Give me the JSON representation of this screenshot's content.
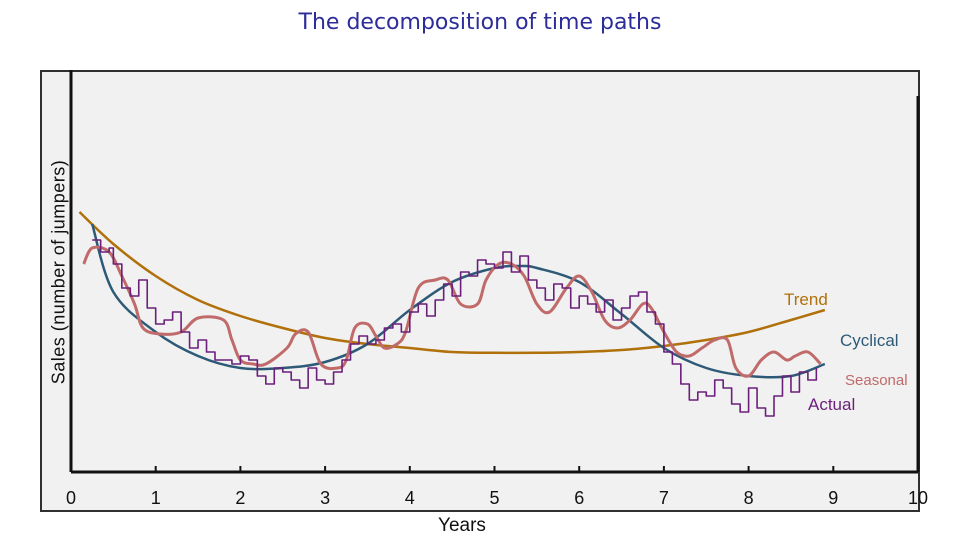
{
  "title": "The decomposition of time paths",
  "chart_data": {
    "type": "line",
    "title": "The decomposition of time paths",
    "xlabel": "Years",
    "ylabel": "Sales (number of jumpers)",
    "xlim": [
      0,
      10
    ],
    "xticks": [
      0,
      1,
      2,
      3,
      4,
      5,
      6,
      7,
      8,
      9,
      10
    ],
    "ylim": [
      0,
      100
    ],
    "grid": false,
    "legend": "inline labels at right end of each series",
    "colors": {
      "trend": "#b0700a",
      "cyclical": "#2e5a78",
      "seasonal": "#c06a6a",
      "actual": "#6b1f7a",
      "axis": "#111111"
    },
    "series": [
      {
        "name": "Trend",
        "key": "trend",
        "x": [
          0.1,
          0.5,
          1,
          1.5,
          2,
          2.5,
          3,
          3.5,
          4,
          4.5,
          5,
          5.5,
          6,
          6.5,
          7,
          7.5,
          8,
          8.5,
          8.9
        ],
        "y": [
          65,
          57,
          49,
          43,
          39,
          36,
          33.5,
          32,
          31,
          30,
          29.8,
          29.8,
          30,
          30.5,
          31.5,
          33,
          35,
          38,
          40.5
        ]
      },
      {
        "name": "Cyclical",
        "key": "cyclical",
        "x": [
          0.25,
          0.5,
          1,
          1.5,
          2,
          2.5,
          3,
          3.5,
          4,
          4.5,
          5,
          5.3,
          5.5,
          6,
          6.5,
          7,
          7.5,
          8,
          8.5,
          8.9
        ],
        "y": [
          62,
          45,
          35,
          29,
          26,
          26,
          27.5,
          32,
          40.5,
          47.5,
          51,
          51.5,
          51,
          47.5,
          39.5,
          31,
          26,
          24,
          24,
          27
        ]
      },
      {
        "name": "Seasonal",
        "key": "seasonal",
        "x": [
          0.15,
          0.25,
          0.45,
          0.6,
          0.75,
          0.85,
          1.05,
          1.3,
          1.5,
          1.8,
          1.9,
          2.0,
          2.15,
          2.3,
          2.55,
          2.65,
          2.8,
          2.95,
          3.15,
          3.25,
          3.35,
          3.5,
          3.6,
          3.7,
          3.85,
          3.95,
          4.1,
          4.3,
          4.45,
          4.6,
          4.8,
          4.9,
          5.05,
          5.2,
          5.35,
          5.5,
          5.65,
          5.85,
          6.0,
          6.15,
          6.3,
          6.45,
          6.6,
          6.75,
          6.85,
          7.0,
          7.15,
          7.3,
          7.45,
          7.6,
          7.75,
          7.85,
          8.0,
          8.15,
          8.3,
          8.45,
          8.55,
          8.7,
          8.85
        ],
        "y": [
          52,
          56,
          55,
          49,
          42,
          36,
          34.5,
          35,
          38.5,
          38,
          33,
          28,
          27,
          27,
          31,
          34.5,
          35,
          27,
          26,
          28,
          36,
          37,
          34,
          31,
          32,
          35,
          46,
          48,
          48,
          42,
          42,
          48,
          52,
          52,
          49,
          42,
          40,
          46,
          49,
          45,
          38,
          36,
          38,
          42,
          41,
          35,
          30,
          29,
          31,
          33,
          33,
          26,
          24,
          28,
          30,
          28,
          29,
          30,
          27
        ]
      },
      {
        "name": "Actual",
        "key": "actual",
        "x": [
          0.25,
          0.35,
          0.45,
          0.5,
          0.6,
          0.7,
          0.8,
          0.9,
          1.0,
          1.1,
          1.2,
          1.3,
          1.4,
          1.5,
          1.6,
          1.7,
          1.8,
          1.9,
          2.0,
          2.1,
          2.2,
          2.3,
          2.4,
          2.5,
          2.6,
          2.7,
          2.8,
          2.9,
          3.0,
          3.1,
          3.2,
          3.3,
          3.4,
          3.5,
          3.6,
          3.7,
          3.8,
          3.9,
          4.0,
          4.1,
          4.2,
          4.3,
          4.4,
          4.5,
          4.6,
          4.7,
          4.8,
          4.9,
          5.0,
          5.1,
          5.2,
          5.3,
          5.4,
          5.5,
          5.6,
          5.7,
          5.8,
          5.9,
          6.0,
          6.1,
          6.2,
          6.3,
          6.4,
          6.5,
          6.6,
          6.7,
          6.8,
          6.9,
          7.0,
          7.1,
          7.2,
          7.3,
          7.4,
          7.5,
          7.6,
          7.7,
          7.8,
          7.9,
          8.0,
          8.1,
          8.2,
          8.3,
          8.4,
          8.5,
          8.6,
          8.7,
          8.8
        ],
        "y": [
          58,
          55,
          56,
          52,
          46,
          44,
          48,
          41,
          37,
          38,
          40,
          35,
          31,
          33,
          30,
          28,
          28,
          27,
          29,
          28,
          24,
          22,
          26,
          25,
          23,
          21,
          26,
          23,
          22,
          25,
          28,
          32,
          34,
          32,
          33,
          36,
          37,
          35,
          40,
          42,
          39,
          43,
          47,
          44,
          50,
          49,
          53,
          52,
          51,
          55,
          50,
          54,
          48,
          46,
          43,
          47,
          46,
          41,
          44,
          42,
          40,
          43,
          38,
          41,
          44,
          45,
          40,
          37,
          30,
          27,
          22,
          18,
          20,
          19,
          23,
          21,
          17,
          15,
          21,
          16,
          14,
          19,
          24,
          20,
          25,
          23,
          26
        ]
      }
    ]
  }
}
